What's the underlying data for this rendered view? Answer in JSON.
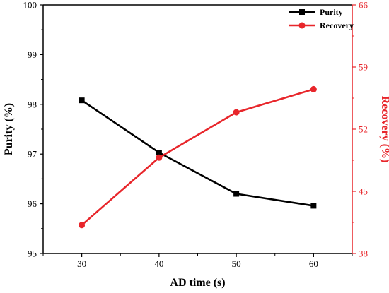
{
  "chart_data": {
    "type": "line",
    "title": "",
    "xlabel": "AD time (s)",
    "ylabel_left": "Purity (%)",
    "ylabel_right": "Recovery (%)",
    "x": [
      30,
      40,
      50,
      60
    ],
    "x_ticks": [
      "30",
      "40",
      "50",
      "60"
    ],
    "xlim": [
      25,
      65
    ],
    "ylim_left": [
      95,
      100
    ],
    "ylim_right": [
      38,
      66
    ],
    "y_ticks_left": [
      "95",
      "96",
      "97",
      "98",
      "99",
      "100"
    ],
    "y_ticks_right": [
      "38",
      "45",
      "52",
      "59",
      "66"
    ],
    "grid": false,
    "legend_position": "top-right",
    "series": [
      {
        "name": "Purity",
        "axis": "left",
        "color": "#000000",
        "marker": "square",
        "values": [
          98.08,
          97.03,
          96.2,
          95.96
        ]
      },
      {
        "name": "Recovery",
        "axis": "right",
        "color": "#e8262b",
        "marker": "circle",
        "values": [
          41.2,
          48.8,
          53.9,
          56.5
        ]
      }
    ]
  }
}
